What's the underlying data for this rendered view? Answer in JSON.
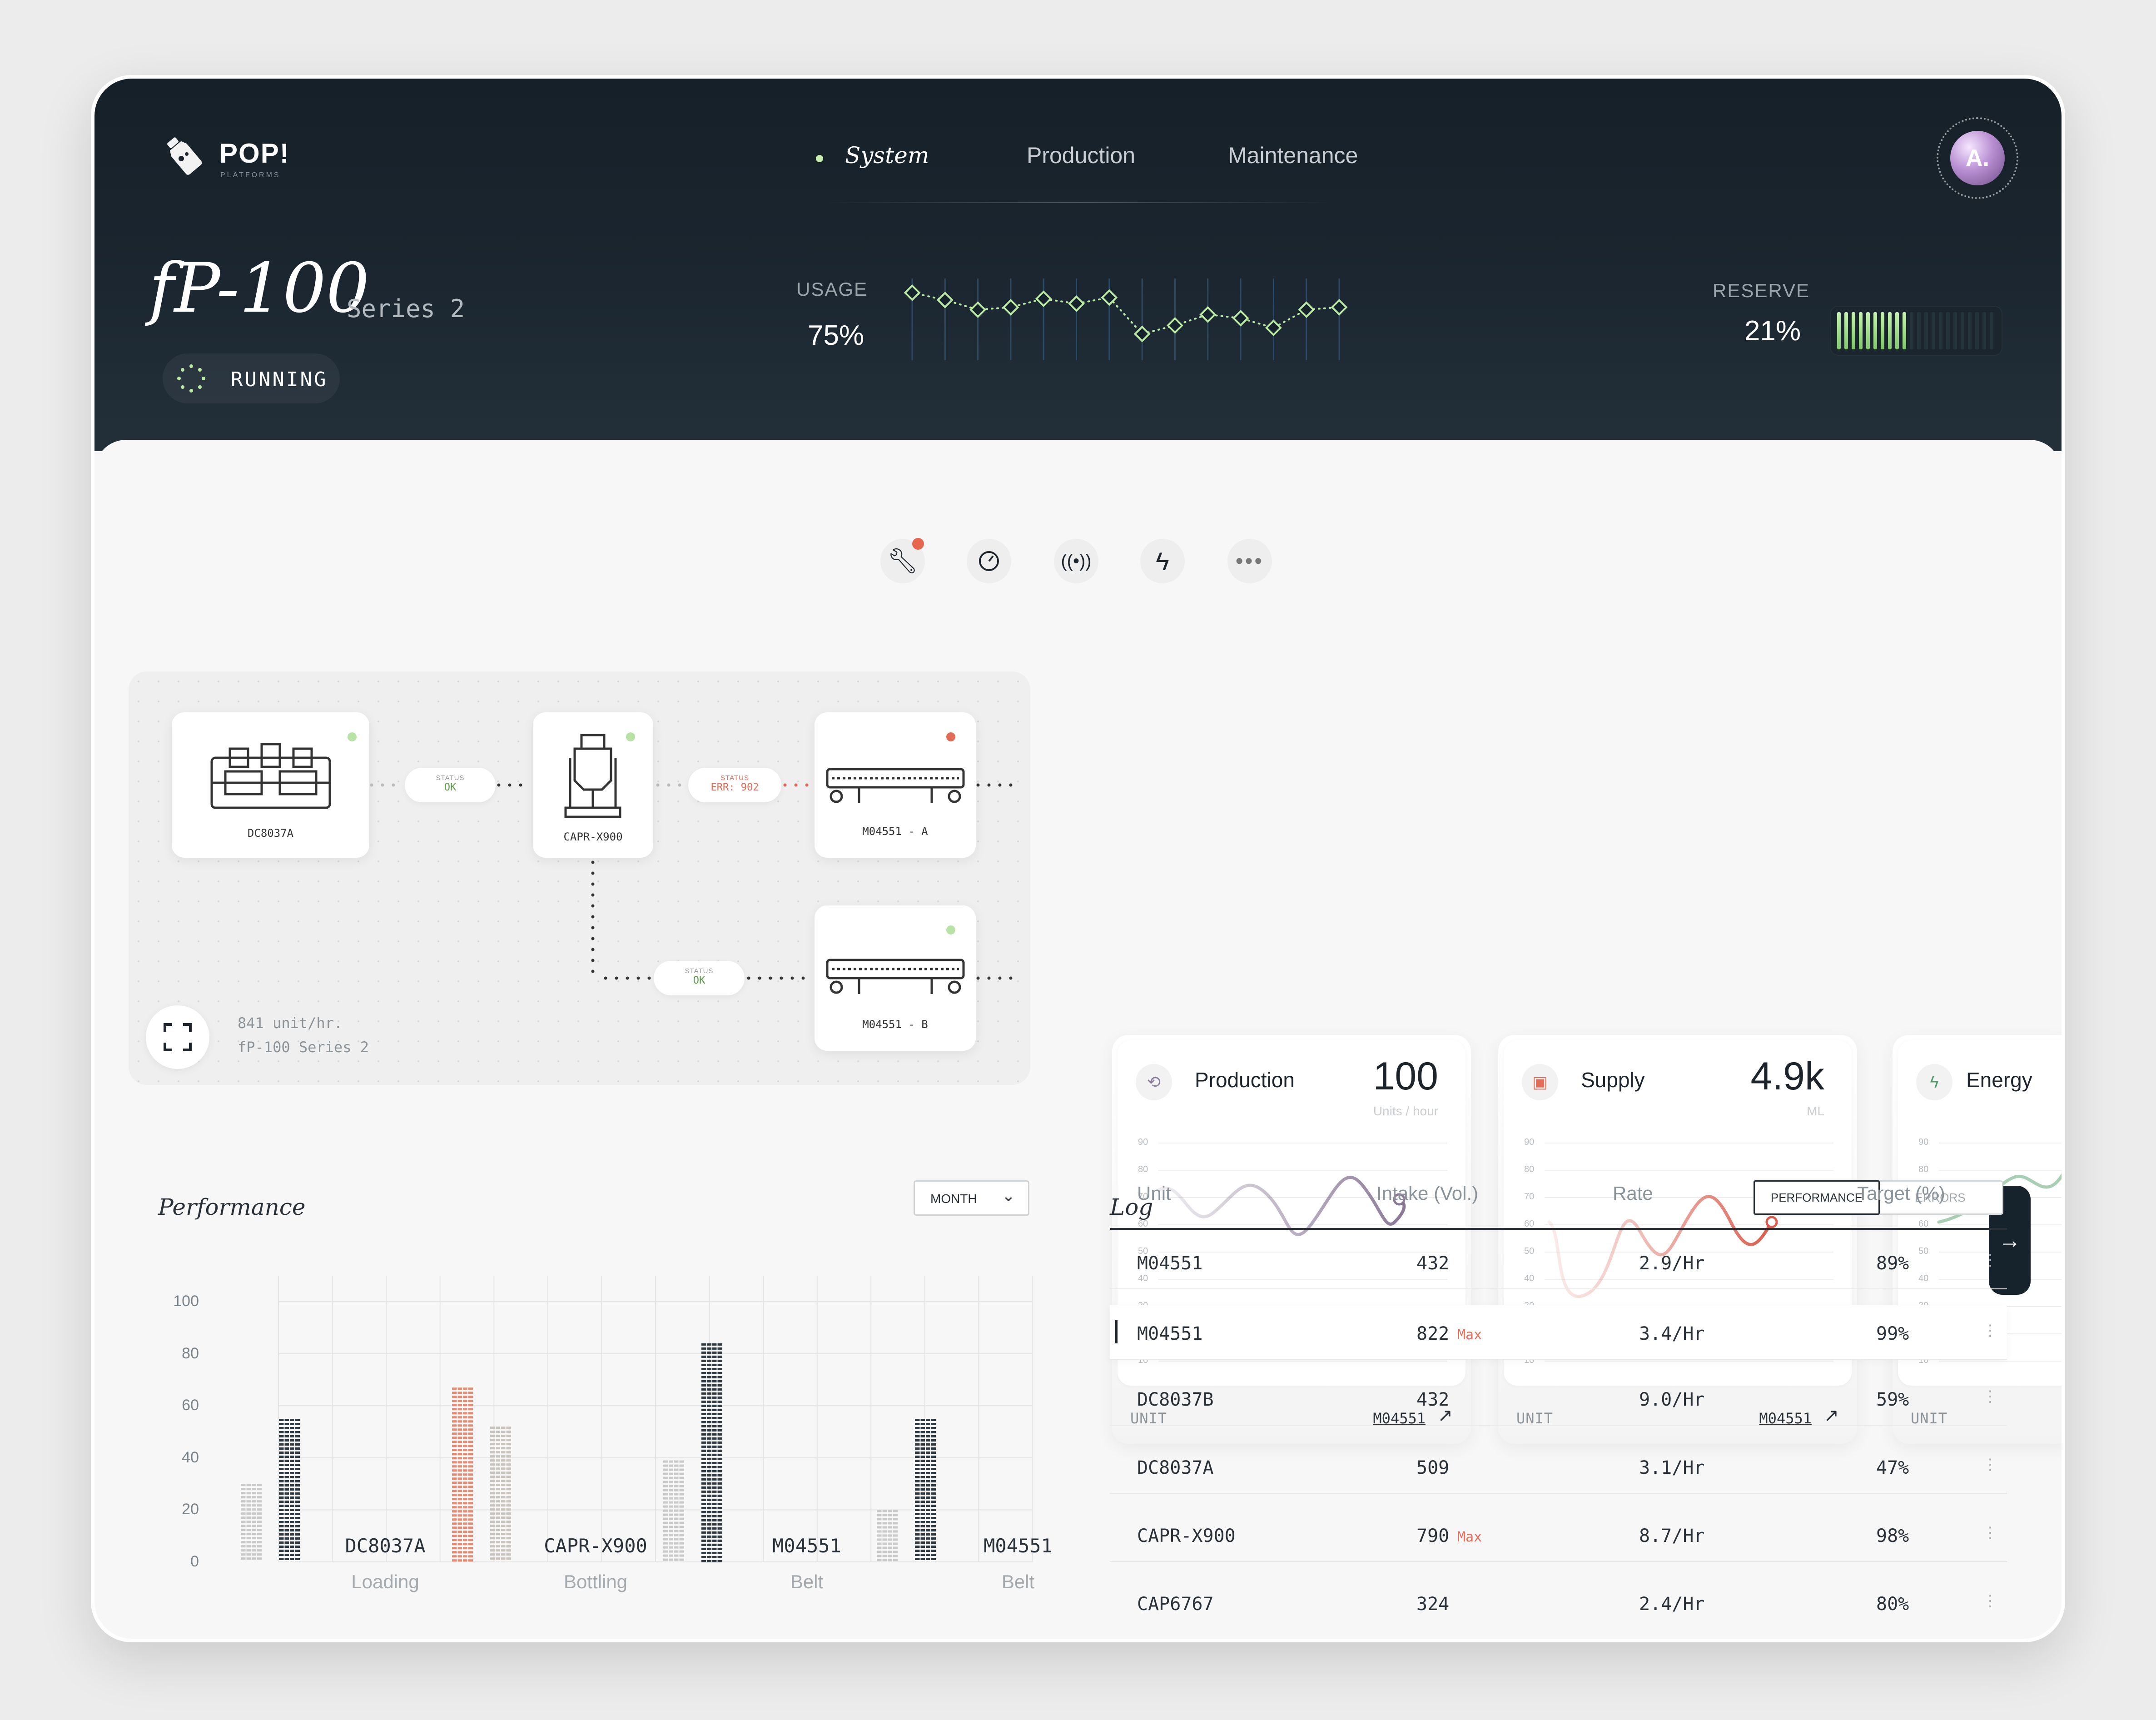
{
  "brand": {
    "name": "POP!",
    "sub": "PLATFORMS"
  },
  "nav": {
    "items": [
      "System",
      "Production",
      "Maintenance"
    ],
    "active": "System"
  },
  "avatar": {
    "label": "A."
  },
  "machine": {
    "model": "fP-100",
    "series": "Series 2",
    "status": "RUNNING"
  },
  "usage": {
    "label": "USAGE",
    "value": "75%",
    "sparkline": [
      92,
      86,
      78,
      80,
      87,
      83,
      88,
      58,
      65,
      74,
      71,
      63,
      78,
      80
    ]
  },
  "reserve": {
    "label": "RESERVE",
    "value": "21%",
    "level": 0.21
  },
  "toolbar": {
    "icons": [
      "wrench-icon",
      "gauge-icon",
      "signal-icon",
      "bolt-icon",
      "more-icon"
    ]
  },
  "flow": {
    "nodes": [
      {
        "id": "DC8037A",
        "status": "ok"
      },
      {
        "id": "CAPR-X900",
        "status": "ok"
      },
      {
        "id": "M04551 - A",
        "status": "error"
      },
      {
        "id": "M04551 - B",
        "status": "ok"
      }
    ],
    "links": [
      {
        "label": "STATUS",
        "value": "OK"
      },
      {
        "label": "STATUS",
        "value": "ERR: 902"
      },
      {
        "label": "STATUS",
        "value": "OK"
      }
    ],
    "rate": "841 unit/hr.",
    "model": "fP-100 Series 2"
  },
  "cards": [
    {
      "title": "Production",
      "value": "100",
      "unit": "Units / hour",
      "foot": "UNIT",
      "link": "M04551",
      "color": "#9c8ca8"
    },
    {
      "title": "Supply",
      "value": "4.9k",
      "unit": "ML",
      "foot": "UNIT",
      "link": "M04551",
      "color": "#d9776a"
    },
    {
      "title": "Energy",
      "value": "",
      "unit": "",
      "foot": "UNIT",
      "link": "",
      "color": "#8fb59c"
    }
  ],
  "card_axis": [
    "90",
    "80",
    "70",
    "60",
    "50",
    "40",
    "30",
    "20",
    "10"
  ],
  "performance": {
    "title": "Performance",
    "period": "MONTH"
  },
  "chart_data": {
    "type": "bar",
    "categories": [
      "DC8037A",
      "CAPR-X900",
      "M04551",
      "M04551"
    ],
    "subcategories": [
      "Loading",
      "Bottling",
      "Belt",
      "Belt"
    ],
    "series": [
      {
        "values": [
          30,
          67,
          39,
          20
        ]
      },
      {
        "values": [
          55,
          52,
          84,
          55
        ]
      }
    ],
    "ylim": [
      0,
      110
    ],
    "yticks": [
      "100",
      "80",
      "60",
      "40",
      "20",
      "0"
    ]
  },
  "log": {
    "title": "Log",
    "tabs": [
      "PERFORMANCE",
      "ERRORS"
    ],
    "columns": [
      "Unit",
      "Intake (Vol.)",
      "Rate",
      "Target (%)"
    ],
    "rows": [
      {
        "unit": "M04551",
        "intake": "432",
        "tag": "",
        "rate": "2.9/Hr",
        "target": "89%"
      },
      {
        "unit": "M04551",
        "intake": "822",
        "tag": "Max",
        "rate": "3.4/Hr",
        "target": "99%"
      },
      {
        "unit": "DC8037B",
        "intake": "432",
        "tag": "",
        "rate": "9.0/Hr",
        "target": "59%"
      },
      {
        "unit": "DC8037A",
        "intake": "509",
        "tag": "",
        "rate": "3.1/Hr",
        "target": "47%"
      },
      {
        "unit": "CAPR-X900",
        "intake": "790",
        "tag": "Max",
        "rate": "8.7/Hr",
        "target": "98%"
      },
      {
        "unit": "CAP6767",
        "intake": "324",
        "tag": "",
        "rate": "2.4/Hr",
        "target": "80%"
      }
    ]
  }
}
